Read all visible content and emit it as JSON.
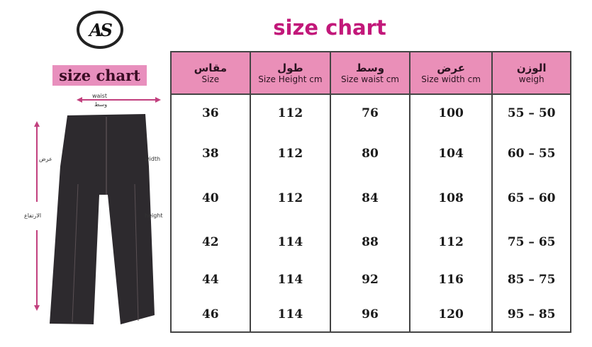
{
  "logo_text": "AS",
  "badge": "size chart",
  "title": "size chart",
  "labels": {
    "waist_en": "waist",
    "waist_ar": "وسط",
    "width_ar": "عرض",
    "width_en": "width",
    "height_ar": "الارتفاع",
    "height_en": "height"
  },
  "colors": {
    "header_pink": "#ea8fb8",
    "title_magenta": "#c2187a",
    "arrow_pink": "#c2407e"
  },
  "table": {
    "headers": [
      {
        "ar": "مقاس",
        "en": "Size"
      },
      {
        "ar": "طول",
        "en": "Size Height cm"
      },
      {
        "ar": "وسط",
        "en": "Size waist cm"
      },
      {
        "ar": "عرض",
        "en": "Size width cm"
      },
      {
        "ar": "الوزن",
        "en": "weigh"
      }
    ],
    "rows": [
      [
        "36",
        "112",
        "76",
        "100",
        "55 – 50"
      ],
      [
        "38",
        "112",
        "80",
        "104",
        "60 – 55"
      ],
      [
        "40",
        "112",
        "84",
        "108",
        "65 – 60"
      ],
      [
        "42",
        "114",
        "88",
        "112",
        "75 – 65"
      ],
      [
        "44",
        "114",
        "92",
        "116",
        "85 – 75"
      ],
      [
        "46",
        "114",
        "96",
        "120",
        "95 – 85"
      ]
    ]
  }
}
